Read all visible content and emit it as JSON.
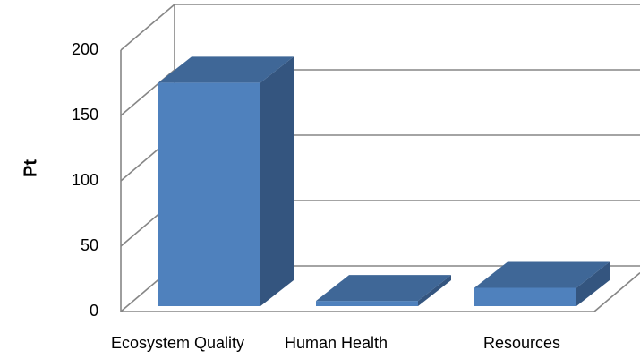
{
  "chart_data": {
    "type": "bar",
    "title": "",
    "xlabel": "",
    "ylabel": "Pt",
    "categories": [
      "Ecosystem Quality",
      "Human Health",
      "Resources"
    ],
    "values": [
      171,
      4,
      14
    ],
    "ylim": [
      0,
      200
    ],
    "yticks": [
      "0",
      "50",
      "100",
      "150",
      "200"
    ],
    "grid": true,
    "legend": "none",
    "style": "3d-column",
    "colors": {
      "bar_front": "#4F81BD",
      "bar_side": "#34557F",
      "bar_top": "#3F6797",
      "gridline": "#868686"
    }
  }
}
